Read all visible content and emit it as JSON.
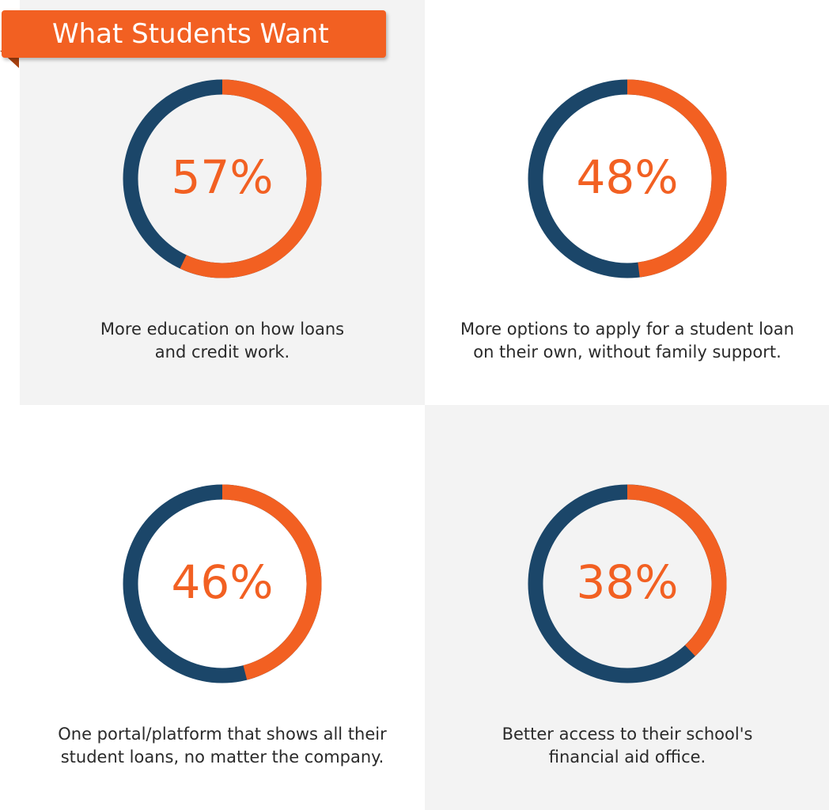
{
  "header": {
    "title": "What Students Want"
  },
  "colors": {
    "accent": "#f26022",
    "track": "#1b4669",
    "panel": "#f3f3f3"
  },
  "chart_data": [
    {
      "type": "pie",
      "label": "57%",
      "values": [
        57,
        43
      ],
      "caption_lines": [
        "More education on how loans",
        "and credit work."
      ]
    },
    {
      "type": "pie",
      "label": "48%",
      "values": [
        48,
        52
      ],
      "caption_lines": [
        "More options to apply for a student loan",
        "on their own, without family support."
      ]
    },
    {
      "type": "pie",
      "label": "46%",
      "values": [
        46,
        54
      ],
      "caption_lines": [
        "One portal/platform that shows all their",
        "student loans, no matter the company."
      ]
    },
    {
      "type": "pie",
      "label": "38%",
      "values": [
        38,
        62
      ],
      "caption_lines": [
        "Better access to their school's",
        "financial aid office."
      ]
    }
  ]
}
